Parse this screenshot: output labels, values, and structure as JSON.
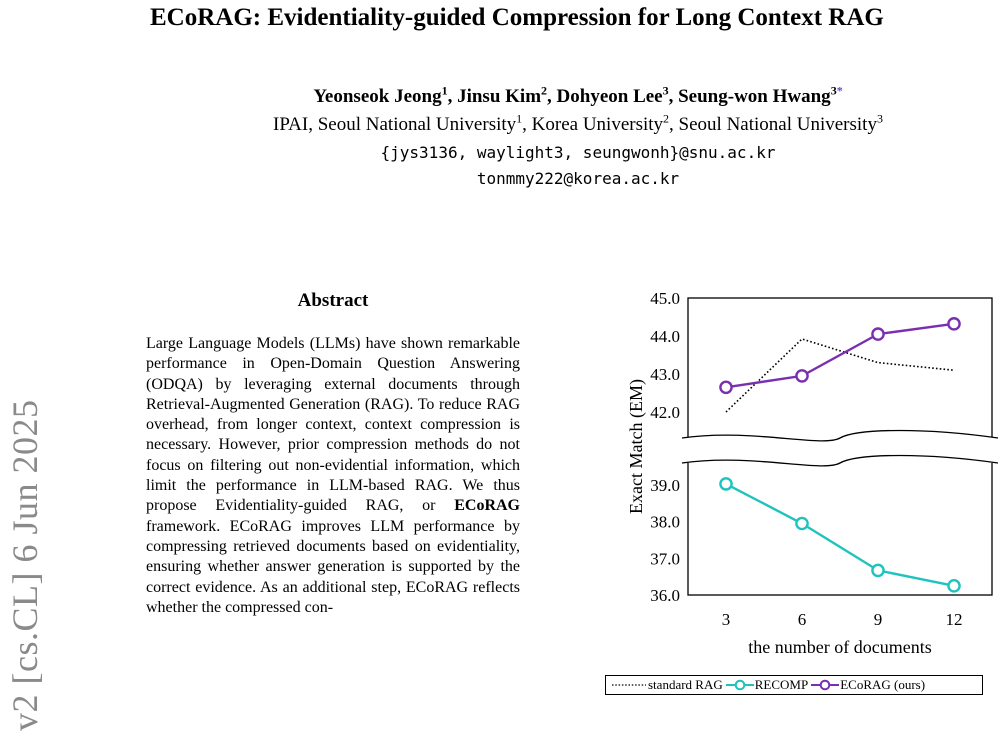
{
  "paper": {
    "title": "ECoRAG: Evidentiality-guided Compression for Long Context RAG",
    "authors": [
      {
        "name": "Yeonseok Jeong",
        "sup": "1",
        "sep": ", "
      },
      {
        "name": "Jinsu Kim",
        "sup": "2",
        "sep": ", "
      },
      {
        "name": "Dohyeon Lee",
        "sup": "3",
        "sep": ", "
      },
      {
        "name": "Seung-won Hwang",
        "sup": "3",
        "sep": ""
      }
    ],
    "corresponding_mark": "*",
    "affiliations": [
      {
        "name": "IPAI, Seoul National University",
        "sup": "1",
        "sep": ", "
      },
      {
        "name": "Korea University",
        "sup": "2",
        "sep": ", "
      },
      {
        "name": "Seoul National University",
        "sup": "3",
        "sep": ""
      }
    ],
    "emails": [
      "{jys3136, waylight3, seungwonh}@snu.ac.kr",
      "tonmmy222@korea.ac.kr"
    ],
    "arxiv_stamp": "v2  [cs.CL]  6 Jun 2025",
    "abstract_heading": "Abstract",
    "abstract_part1": "Large Language Models (LLMs) have shown remarkable performance in Open-Domain Question Answering (ODQA) by leveraging external documents through Retrieval-Augmented Generation (RAG). To reduce RAG overhead, from longer context, context compression is necessary. However, prior compression methods do not focus on filtering out non-evidential information, which limit the performance in LLM-based RAG. We thus propose Evidentiality-guided RAG, or ",
    "abstract_bold": "ECoRAG",
    "abstract_part2": " framework. ECoRAG improves LLM performance by compressing retrieved documents based on evidentiality, ensuring whether answer generation is supported by the correct evidence. As an additional step, ECoRAG reflects whether the compressed con-"
  },
  "chart_data": {
    "type": "line",
    "x": [
      3,
      6,
      9,
      12
    ],
    "xlabel": "the number of documents",
    "ylabel": "Exact Match (EM)",
    "ylim_upper": [
      42.0,
      45.0
    ],
    "ylim_lower": [
      36.0,
      39.0
    ],
    "broken_axis": true,
    "upper_ticks": [
      "45.0",
      "44.0",
      "43.0",
      "42.0"
    ],
    "lower_ticks": [
      "39.0",
      "38.0",
      "37.0",
      "36.0"
    ],
    "x_ticks": [
      "3",
      "6",
      "9",
      "12"
    ],
    "legend_position": "bottom",
    "series": [
      {
        "name": "standard RAG",
        "values": [
          42.0,
          43.92,
          43.3,
          43.1
        ],
        "color": "#000000",
        "style": "dotted"
      },
      {
        "name": "RECOMP",
        "values": [
          39.03,
          37.95,
          36.67,
          36.25
        ],
        "color": "#1fc3bd",
        "style": "solid-markers"
      },
      {
        "name": "ECoRAG (ours)",
        "values": [
          42.65,
          42.95,
          44.05,
          44.32
        ],
        "color": "#7a2fb0",
        "style": "solid-markers"
      }
    ]
  }
}
